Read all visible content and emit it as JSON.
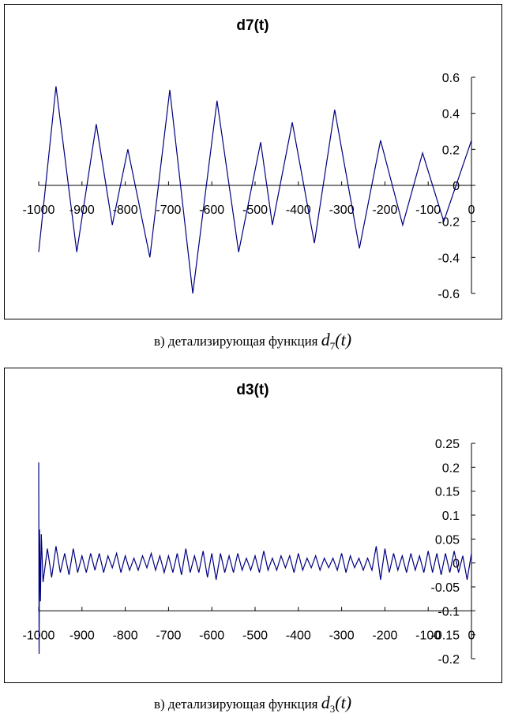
{
  "chart_data": [
    {
      "type": "line",
      "title": "d7(t)",
      "color": "#000080",
      "xaxis_crosses": 0,
      "x": [
        -1000,
        -960,
        -912,
        -867,
        -830,
        -794,
        -743,
        -697,
        -644,
        -588,
        -538,
        -487,
        -460,
        -414,
        -363,
        -316,
        -259,
        -210,
        -159,
        -113,
        -64,
        0
      ],
      "values": [
        -0.37,
        0.55,
        -0.37,
        0.34,
        -0.22,
        0.2,
        -0.4,
        0.53,
        -0.6,
        0.47,
        -0.37,
        0.24,
        -0.22,
        0.35,
        -0.32,
        0.42,
        -0.35,
        0.25,
        -0.22,
        0.18,
        -0.2,
        0.25
      ],
      "xlim": [
        -1000,
        0
      ],
      "xticks": [
        -1000,
        -900,
        -800,
        -700,
        -600,
        -500,
        -400,
        -300,
        -200,
        -100,
        0
      ],
      "ylim": [
        -0.6,
        0.6
      ],
      "yticks": [
        0.6,
        0.4,
        0.2,
        0,
        -0.2,
        -0.4,
        -0.6
      ]
    },
    {
      "type": "line",
      "title": "d3(t)",
      "color": "#000080",
      "xaxis_crosses": -0.1,
      "x": [
        -1000,
        -999,
        -998,
        -996,
        -994,
        -990,
        -980,
        -970,
        -960,
        -950,
        -940,
        -930,
        -920,
        -910,
        -900,
        -890,
        -880,
        -870,
        -860,
        -850,
        -840,
        -830,
        -820,
        -810,
        -800,
        -790,
        -780,
        -770,
        -760,
        -750,
        -740,
        -730,
        -720,
        -710,
        -700,
        -690,
        -680,
        -670,
        -660,
        -650,
        -640,
        -630,
        -620,
        -610,
        -600,
        -590,
        -580,
        -570,
        -560,
        -550,
        -540,
        -530,
        -520,
        -510,
        -500,
        -490,
        -480,
        -470,
        -460,
        -450,
        -440,
        -430,
        -420,
        -410,
        -400,
        -390,
        -380,
        -370,
        -360,
        -350,
        -340,
        -330,
        -320,
        -310,
        -300,
        -290,
        -280,
        -270,
        -260,
        -250,
        -240,
        -230,
        -220,
        -210,
        -200,
        -190,
        -180,
        -170,
        -160,
        -150,
        -140,
        -130,
        -120,
        -110,
        -100,
        -90,
        -80,
        -70,
        -60,
        -50,
        -40,
        -30,
        -20,
        -10,
        0
      ],
      "values": [
        0.21,
        -0.19,
        0.07,
        -0.08,
        0.06,
        -0.04,
        0.03,
        -0.03,
        0.035,
        -0.02,
        0.02,
        -0.025,
        0.03,
        -0.02,
        0.015,
        -0.02,
        0.02,
        -0.015,
        0.02,
        -0.02,
        0.015,
        -0.01,
        0.02,
        -0.02,
        0.015,
        -0.015,
        0.01,
        -0.015,
        0.015,
        -0.01,
        0.02,
        -0.015,
        0.015,
        -0.02,
        0.015,
        -0.02,
        0.02,
        -0.025,
        0.03,
        -0.02,
        0.015,
        -0.02,
        0.025,
        -0.03,
        0.02,
        -0.035,
        0.02,
        -0.02,
        0.015,
        -0.02,
        0.02,
        -0.015,
        0.01,
        -0.015,
        0.015,
        -0.02,
        0.025,
        -0.015,
        0.01,
        -0.015,
        0.015,
        -0.01,
        0.015,
        -0.02,
        0.02,
        -0.015,
        0.01,
        -0.01,
        0.015,
        -0.015,
        0.01,
        -0.01,
        0.01,
        -0.015,
        0.02,
        -0.02,
        0.015,
        -0.01,
        0.01,
        -0.015,
        0.01,
        -0.015,
        0.035,
        -0.035,
        0.03,
        -0.02,
        0.02,
        -0.015,
        0.015,
        -0.02,
        0.02,
        -0.015,
        0.015,
        -0.02,
        0.025,
        -0.02,
        0.02,
        -0.025,
        0.02,
        -0.02,
        0.025,
        -0.02,
        0.015,
        -0.035,
        0.02
      ],
      "xlim": [
        -1000,
        0
      ],
      "xticks": [
        -1000,
        -900,
        -800,
        -700,
        -600,
        -500,
        -400,
        -300,
        -200,
        -100,
        0
      ],
      "ylim": [
        -0.2,
        0.25
      ],
      "yticks": [
        0.25,
        0.2,
        0.15,
        0.1,
        0.05,
        0,
        -0.05,
        -0.1,
        -0.15,
        -0.2
      ]
    }
  ],
  "captions": [
    {
      "text": "в) детализирующая функция",
      "symbol": "d",
      "index": "7",
      "args": "(t)"
    },
    {
      "text": "в) детализирующая функция",
      "symbol": "d",
      "index": "3",
      "args": "(t)"
    }
  ]
}
